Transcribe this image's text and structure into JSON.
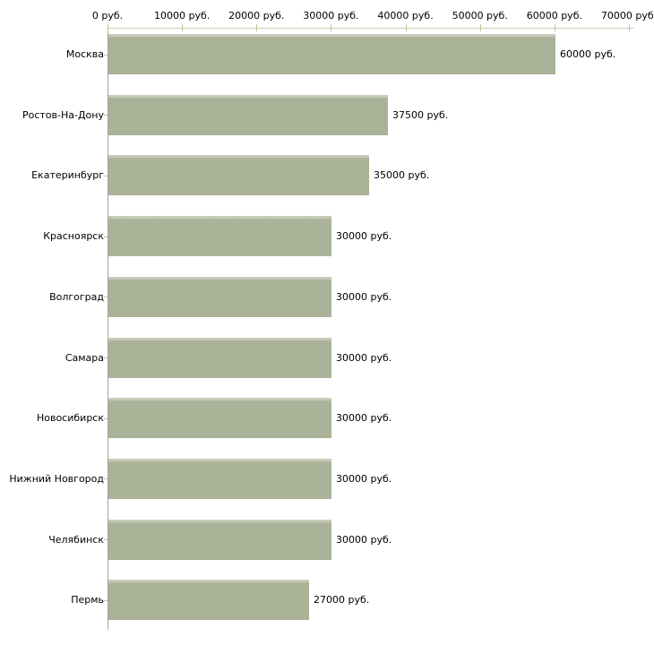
{
  "chart_data": {
    "type": "bar",
    "orientation": "horizontal",
    "title": "",
    "categories": [
      "Москва",
      "Ростов-На-Дону",
      "Екатеринбург",
      "Красноярск",
      "Волгоград",
      "Самара",
      "Новосибирск",
      "Нижний Новгород",
      "Челябинск",
      "Пермь"
    ],
    "values": [
      60000,
      37500,
      35000,
      30000,
      30000,
      30000,
      30000,
      30000,
      30000,
      27000
    ],
    "value_labels": [
      "60000 руб.",
      "37500 руб.",
      "35000 руб.",
      "30000 руб.",
      "30000 руб.",
      "30000 руб.",
      "30000 руб.",
      "30000 руб.",
      "30000 руб.",
      "27000 руб."
    ],
    "x_ticks": [
      0,
      10000,
      20000,
      30000,
      40000,
      50000,
      60000,
      70000
    ],
    "x_tick_labels": [
      "0 руб.",
      "10000 руб.",
      "20000 руб.",
      "30000 руб.",
      "40000 руб.",
      "50000 руб.",
      "60000 руб.",
      "70000 руб."
    ],
    "xlim": [
      0,
      70000
    ],
    "unit": "руб.",
    "grid": false,
    "legend": null,
    "colors": {
      "bar": "#aab298",
      "bar_highlight": "#c8cdbb",
      "x_axis_line": "#d2d2bc",
      "y_axis_line": "#a3a3a3",
      "tick": "#c3c39a",
      "text": "#000000",
      "background": "#ffffff"
    }
  }
}
